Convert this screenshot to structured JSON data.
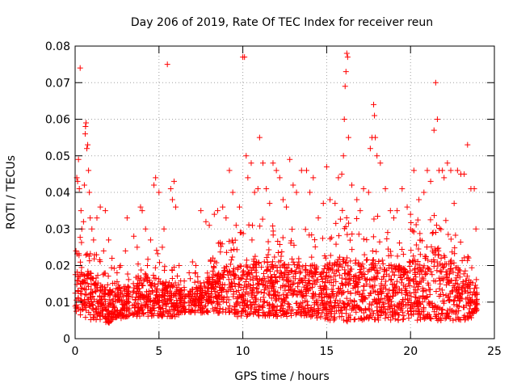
{
  "chart_data": {
    "type": "scatter",
    "title": "Day 206 of 2019, Rate Of TEC Index for receiver reun",
    "xlabel": "GPS time / hours",
    "ylabel": "ROTI / TECUs",
    "xlim": [
      0,
      25
    ],
    "ylim": [
      0,
      0.08
    ],
    "xticks": [
      "0",
      "5",
      "10",
      "15",
      "20",
      "25"
    ],
    "yticks": [
      "0",
      "0.01",
      "0.02",
      "0.03",
      "0.04",
      "0.05",
      "0.06",
      "0.07",
      "0.08"
    ],
    "grid": true,
    "marker": "+",
    "color": "#ff0000",
    "series": [
      {
        "points": [
          [
            0.05,
            0.024
          ],
          [
            0.1,
            0.044
          ],
          [
            0.15,
            0.043
          ],
          [
            0.2,
            0.049
          ],
          [
            0.25,
            0.041
          ],
          [
            0.3,
            0.074
          ],
          [
            0.35,
            0.035
          ],
          [
            0.4,
            0.03
          ],
          [
            0.5,
            0.032
          ],
          [
            0.55,
            0.042
          ],
          [
            0.6,
            0.056
          ],
          [
            0.62,
            0.058
          ],
          [
            0.65,
            0.059
          ],
          [
            0.7,
            0.052
          ],
          [
            0.75,
            0.053
          ],
          [
            0.8,
            0.046
          ],
          [
            0.85,
            0.04
          ],
          [
            0.9,
            0.033
          ],
          [
            1.0,
            0.03
          ],
          [
            1.1,
            0.027
          ],
          [
            1.3,
            0.033
          ],
          [
            1.5,
            0.036
          ],
          [
            1.7,
            0.024
          ],
          [
            1.8,
            0.035
          ],
          [
            2.0,
            0.027
          ],
          [
            2.2,
            0.022
          ],
          [
            2.5,
            0.018
          ],
          [
            2.7,
            0.02
          ],
          [
            3.0,
            0.024
          ],
          [
            3.1,
            0.033
          ],
          [
            3.5,
            0.028
          ],
          [
            3.7,
            0.025
          ],
          [
            3.9,
            0.036
          ],
          [
            4.0,
            0.035
          ],
          [
            4.2,
            0.03
          ],
          [
            4.5,
            0.027
          ],
          [
            4.7,
            0.042
          ],
          [
            4.8,
            0.044
          ],
          [
            5.0,
            0.04
          ],
          [
            5.2,
            0.025
          ],
          [
            5.3,
            0.03
          ],
          [
            5.5,
            0.075
          ],
          [
            5.7,
            0.041
          ],
          [
            5.8,
            0.038
          ],
          [
            5.9,
            0.043
          ],
          [
            6.0,
            0.036
          ],
          [
            6.2,
            0.02
          ],
          [
            6.5,
            0.014
          ],
          [
            6.8,
            0.018
          ],
          [
            7.0,
            0.021
          ],
          [
            7.2,
            0.02
          ],
          [
            7.5,
            0.035
          ],
          [
            7.8,
            0.032
          ],
          [
            8.0,
            0.031
          ],
          [
            8.3,
            0.034
          ],
          [
            8.5,
            0.035
          ],
          [
            8.8,
            0.036
          ],
          [
            9.0,
            0.033
          ],
          [
            9.2,
            0.046
          ],
          [
            9.4,
            0.04
          ],
          [
            9.6,
            0.031
          ],
          [
            9.8,
            0.036
          ],
          [
            10.0,
            0.077
          ],
          [
            10.1,
            0.077
          ],
          [
            10.2,
            0.05
          ],
          [
            10.3,
            0.044
          ],
          [
            10.5,
            0.048
          ],
          [
            10.7,
            0.04
          ],
          [
            10.9,
            0.041
          ],
          [
            11.0,
            0.055
          ],
          [
            11.2,
            0.048
          ],
          [
            11.4,
            0.041
          ],
          [
            11.6,
            0.037
          ],
          [
            11.8,
            0.048
          ],
          [
            12.0,
            0.046
          ],
          [
            12.2,
            0.044
          ],
          [
            12.4,
            0.038
          ],
          [
            12.6,
            0.036
          ],
          [
            12.8,
            0.049
          ],
          [
            13.0,
            0.042
          ],
          [
            13.2,
            0.04
          ],
          [
            13.5,
            0.046
          ],
          [
            13.8,
            0.046
          ],
          [
            14.0,
            0.04
          ],
          [
            14.2,
            0.044
          ],
          [
            14.5,
            0.033
          ],
          [
            14.8,
            0.037
          ],
          [
            15.0,
            0.047
          ],
          [
            15.2,
            0.038
          ],
          [
            15.5,
            0.037
          ],
          [
            15.7,
            0.044
          ],
          [
            15.9,
            0.045
          ],
          [
            16.0,
            0.05
          ],
          [
            16.05,
            0.06
          ],
          [
            16.1,
            0.069
          ],
          [
            16.15,
            0.073
          ],
          [
            16.2,
            0.078
          ],
          [
            16.25,
            0.077
          ],
          [
            16.3,
            0.055
          ],
          [
            16.5,
            0.042
          ],
          [
            16.8,
            0.038
          ],
          [
            17.0,
            0.035
          ],
          [
            17.2,
            0.041
          ],
          [
            17.5,
            0.04
          ],
          [
            17.6,
            0.052
          ],
          [
            17.7,
            0.055
          ],
          [
            17.8,
            0.064
          ],
          [
            17.85,
            0.061
          ],
          [
            17.9,
            0.055
          ],
          [
            18.0,
            0.05
          ],
          [
            18.2,
            0.048
          ],
          [
            18.5,
            0.041
          ],
          [
            18.8,
            0.035
          ],
          [
            19.0,
            0.033
          ],
          [
            19.2,
            0.035
          ],
          [
            19.5,
            0.041
          ],
          [
            19.8,
            0.036
          ],
          [
            20.0,
            0.034
          ],
          [
            20.2,
            0.046
          ],
          [
            20.5,
            0.038
          ],
          [
            20.8,
            0.04
          ],
          [
            21.0,
            0.046
          ],
          [
            21.2,
            0.043
          ],
          [
            21.4,
            0.057
          ],
          [
            21.5,
            0.07
          ],
          [
            21.6,
            0.06
          ],
          [
            21.7,
            0.046
          ],
          [
            21.9,
            0.046
          ],
          [
            22.0,
            0.044
          ],
          [
            22.2,
            0.048
          ],
          [
            22.4,
            0.046
          ],
          [
            22.6,
            0.037
          ],
          [
            22.8,
            0.046
          ],
          [
            23.0,
            0.045
          ],
          [
            23.2,
            0.045
          ],
          [
            23.4,
            0.053
          ],
          [
            23.6,
            0.041
          ],
          [
            23.8,
            0.041
          ],
          [
            23.9,
            0.03
          ]
        ],
        "density_profile": {
          "description": "dense band of points between low and high ROTI across the day",
          "x": [
            0,
            0.5,
            1,
            1.5,
            2,
            2.5,
            3,
            3.5,
            4,
            4.5,
            5,
            5.5,
            6,
            6.5,
            7,
            7.5,
            8,
            8.5,
            9,
            9.5,
            10,
            10.5,
            11,
            11.5,
            12,
            12.5,
            13,
            13.5,
            14,
            14.5,
            15,
            15.5,
            16,
            16.5,
            17,
            17.5,
            18,
            18.5,
            19,
            19.5,
            20,
            20.5,
            21,
            21.5,
            22,
            22.5,
            23,
            23.5,
            24
          ],
          "low": [
            0.007,
            0.006,
            0.005,
            0.005,
            0.004,
            0.005,
            0.006,
            0.006,
            0.006,
            0.006,
            0.006,
            0.006,
            0.006,
            0.007,
            0.007,
            0.007,
            0.007,
            0.007,
            0.007,
            0.006,
            0.006,
            0.006,
            0.006,
            0.006,
            0.006,
            0.006,
            0.006,
            0.006,
            0.006,
            0.005,
            0.005,
            0.005,
            0.004,
            0.005,
            0.005,
            0.005,
            0.005,
            0.005,
            0.005,
            0.005,
            0.005,
            0.005,
            0.005,
            0.005,
            0.005,
            0.005,
            0.005,
            0.005,
            0.006
          ],
          "high": [
            0.026,
            0.03,
            0.026,
            0.022,
            0.02,
            0.02,
            0.02,
            0.02,
            0.024,
            0.026,
            0.024,
            0.022,
            0.02,
            0.016,
            0.018,
            0.02,
            0.024,
            0.026,
            0.028,
            0.028,
            0.03,
            0.032,
            0.033,
            0.033,
            0.032,
            0.03,
            0.03,
            0.03,
            0.03,
            0.03,
            0.03,
            0.032,
            0.036,
            0.034,
            0.032,
            0.033,
            0.034,
            0.032,
            0.03,
            0.03,
            0.032,
            0.033,
            0.036,
            0.04,
            0.035,
            0.032,
            0.028,
            0.024,
            0.02
          ],
          "gaps_hours": [
            [
              3.25,
              3.4
            ],
            [
              6.6,
              6.75
            ]
          ]
        }
      }
    ]
  }
}
